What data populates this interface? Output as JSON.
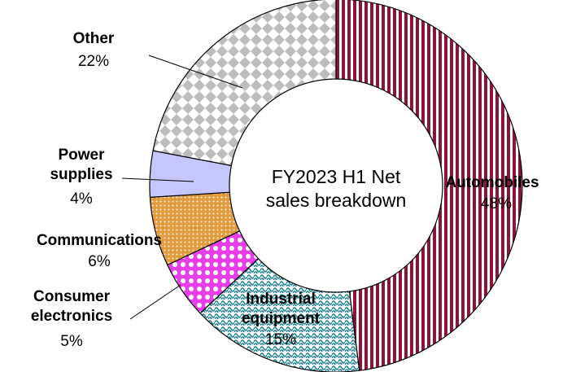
{
  "chart_data": {
    "type": "donut",
    "title": "FY2023 H1 Net sales breakdown",
    "categories": [
      "Automobiles",
      "Industrial equipment",
      "Consumer electronics",
      "Communications",
      "Power supplies",
      "Other"
    ],
    "values": [
      48,
      15,
      5,
      6,
      4,
      22
    ],
    "value_labels": [
      "48%",
      "15%",
      "5%",
      "6%",
      "4%",
      "22%"
    ],
    "colors": [
      "#8b1538",
      "#1a7f8e",
      "#e83ee8",
      "#e39a3b",
      "#c6c6ff",
      "#bdbdbd"
    ]
  }
}
